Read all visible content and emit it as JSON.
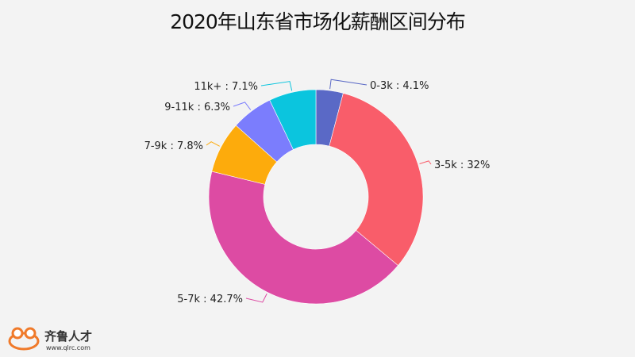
{
  "chart_data": {
    "type": "pie",
    "subtype": "donut",
    "title": "2020年山东省市场化薪酬区间分布",
    "categories": [
      "0-3k",
      "3-5k",
      "5-7k",
      "7-9k",
      "9-11k",
      "11k+"
    ],
    "values": [
      4.1,
      32,
      42.7,
      7.8,
      6.3,
      7.1
    ],
    "labels": [
      "0-3k : 4.1%",
      "3-5k : 32%",
      "5-7k : 42.7%",
      "7-9k : 7.8%",
      "9-11k : 6.3%",
      "11k+ : 7.1%"
    ],
    "colors": [
      "#5a69c6",
      "#f95d6a",
      "#dd4ba3",
      "#fdab0c",
      "#7b7dfd",
      "#0bc5de"
    ]
  },
  "logo": {
    "name": "齐鲁人才",
    "url": "www.qlrc.com"
  }
}
